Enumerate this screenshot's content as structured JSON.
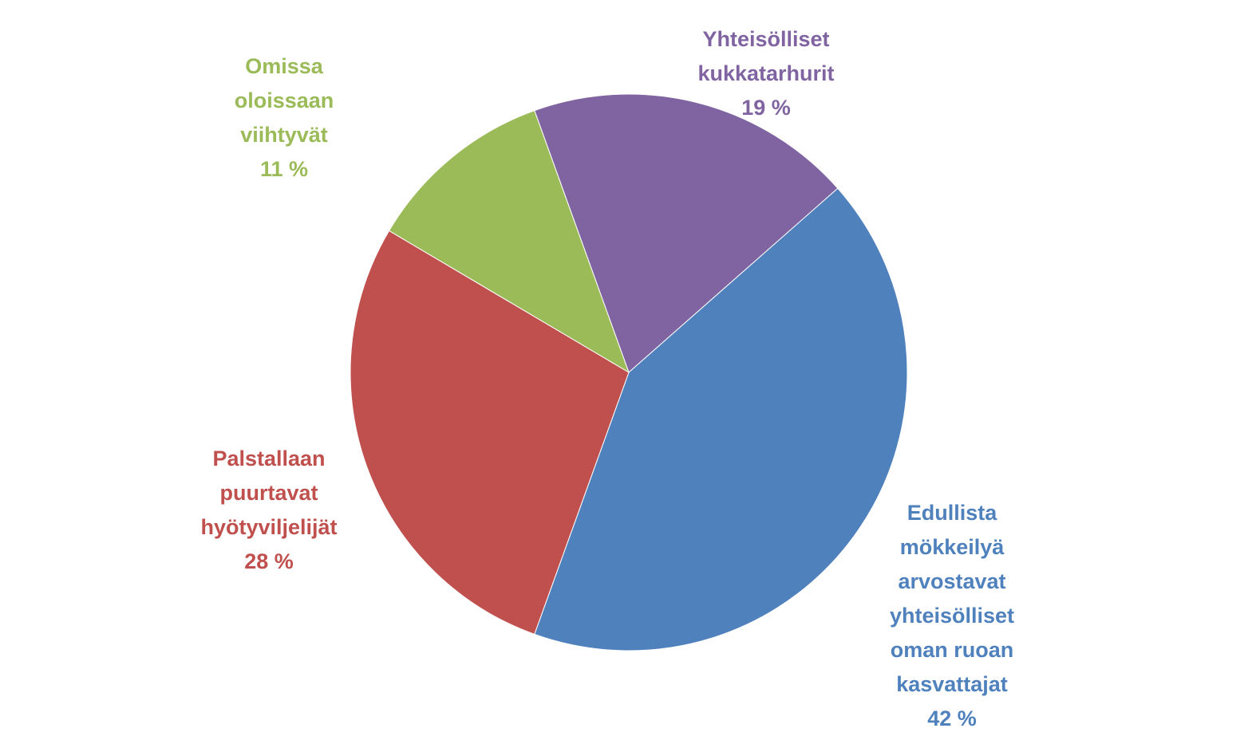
{
  "chart_data": {
    "type": "pie",
    "categories": [
      "Yhteisölliset kukkatarhurit",
      "Edullista mökkeilyä arvostavat yhteisölliset oman ruoan kasvattajat",
      "Palstallaan puurtavat hyötyviljelijät",
      "Omissa oloissaan viihtyvät"
    ],
    "values": [
      19,
      42,
      28,
      11
    ],
    "value_labels": [
      "19 %",
      "42 %",
      "28 %",
      "11 %"
    ],
    "colors": [
      "#8064a2",
      "#4f81bd",
      "#c0504d",
      "#9bbb59"
    ]
  }
}
